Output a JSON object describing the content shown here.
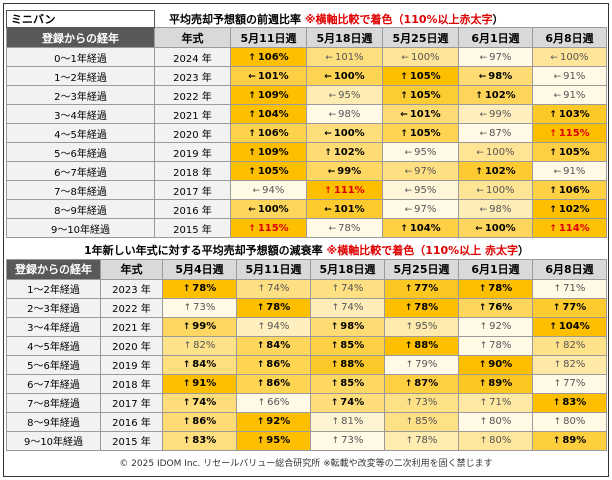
{
  "colors": {
    "header_dark": "#595959",
    "header_light": "#d9d9d9",
    "label_bg": "#f2f2f2",
    "highlight_red": "#e00000",
    "scale_low": "#ffffff",
    "scale_high": "#fdbf00"
  },
  "chart_data": [
    {
      "type": "heatmap",
      "brand": "ミニバン",
      "title_main": "平均売却予想額の前週比率",
      "title_note": "※横軸比較で着色（110%以上",
      "title_note_red": "赤太字",
      "title_note_end": "）",
      "row_header": "登録からの経年",
      "year_header": "年式",
      "columns": [
        "5月11日週",
        "5月18日週",
        "5月25日週",
        "6月1日週",
        "6月8日週"
      ],
      "rows": [
        {
          "label": "0～1年経過",
          "year": "2024 年",
          "arrows": [
            "↑",
            "←",
            "←",
            "←",
            "←"
          ],
          "values": [
            106,
            101,
            100,
            97,
            100
          ]
        },
        {
          "label": "1～2年経過",
          "year": "2023 年",
          "arrows": [
            "←",
            "←",
            "↑",
            "←",
            "←"
          ],
          "values": [
            101,
            100,
            105,
            98,
            91
          ]
        },
        {
          "label": "2～3年経過",
          "year": "2022 年",
          "arrows": [
            "↑",
            "←",
            "↑",
            "↑",
            "←"
          ],
          "values": [
            109,
            95,
            105,
            102,
            91
          ]
        },
        {
          "label": "3～4年経過",
          "year": "2021 年",
          "arrows": [
            "↑",
            "←",
            "←",
            "←",
            "↑"
          ],
          "values": [
            104,
            98,
            101,
            99,
            103
          ]
        },
        {
          "label": "4～5年経過",
          "year": "2020 年",
          "arrows": [
            "↑",
            "←",
            "↑",
            "←",
            "↑"
          ],
          "values": [
            106,
            100,
            105,
            87,
            115
          ]
        },
        {
          "label": "5～6年経過",
          "year": "2019 年",
          "arrows": [
            "↑",
            "↑",
            "←",
            "←",
            "↑"
          ],
          "values": [
            109,
            102,
            95,
            100,
            105
          ]
        },
        {
          "label": "6～7年経過",
          "year": "2018 年",
          "arrows": [
            "↑",
            "←",
            "←",
            "↑",
            "←"
          ],
          "values": [
            105,
            99,
            97,
            102,
            91
          ]
        },
        {
          "label": "7～8年経過",
          "year": "2017 年",
          "arrows": [
            "←",
            "↑",
            "←",
            "←",
            "↑"
          ],
          "values": [
            94,
            111,
            95,
            100,
            106
          ]
        },
        {
          "label": "8～9年経過",
          "year": "2016 年",
          "arrows": [
            "←",
            "←",
            "←",
            "←",
            "↑"
          ],
          "values": [
            100,
            101,
            97,
            98,
            102
          ]
        },
        {
          "label": "9～10年経過",
          "year": "2015 年",
          "arrows": [
            "↑",
            "←",
            "↑",
            "←",
            "↑"
          ],
          "values": [
            115,
            78,
            104,
            100,
            114
          ]
        }
      ]
    },
    {
      "type": "heatmap",
      "title_main": "1年新しい年式に対する平均売却予想額の減衰率",
      "title_note": "※横軸比較で着色（110%以上",
      "title_note_red": "赤太字",
      "title_note_end": "）",
      "row_header": "登録からの経年",
      "year_header": "年式",
      "columns": [
        "5月4日週",
        "5月11日週",
        "5月18日週",
        "5月25日週",
        "6月1日週",
        "6月8日週"
      ],
      "rows": [
        {
          "label": "1～2年経過",
          "year": "2023 年",
          "arrows": [
            "↑",
            "↑",
            "↑",
            "↑",
            "↑",
            "↑"
          ],
          "values": [
            78,
            74,
            74,
            77,
            78,
            71
          ]
        },
        {
          "label": "2～3年経過",
          "year": "2022 年",
          "arrows": [
            "↑",
            "↑",
            "↑",
            "↑",
            "↑",
            "↑"
          ],
          "values": [
            73,
            78,
            74,
            78,
            76,
            77
          ]
        },
        {
          "label": "3～4年経過",
          "year": "2021 年",
          "arrows": [
            "↑",
            "↑",
            "↑",
            "↑",
            "↑",
            "↑"
          ],
          "values": [
            99,
            94,
            98,
            95,
            92,
            104
          ]
        },
        {
          "label": "4～5年経過",
          "year": "2020 年",
          "arrows": [
            "↑",
            "↑",
            "↑",
            "↑",
            "↑",
            "↑"
          ],
          "values": [
            82,
            84,
            85,
            88,
            78,
            82
          ]
        },
        {
          "label": "5～6年経過",
          "year": "2019 年",
          "arrows": [
            "↑",
            "↑",
            "↑",
            "↑",
            "↑",
            "↑"
          ],
          "values": [
            84,
            86,
            88,
            79,
            90,
            82
          ]
        },
        {
          "label": "6～7年経過",
          "year": "2018 年",
          "arrows": [
            "↑",
            "↑",
            "↑",
            "↑",
            "↑",
            "↑"
          ],
          "values": [
            91,
            86,
            85,
            87,
            89,
            77
          ]
        },
        {
          "label": "7～8年経過",
          "year": "2017 年",
          "arrows": [
            "↑",
            "↑",
            "↑",
            "↑",
            "↑",
            "↑"
          ],
          "values": [
            74,
            66,
            74,
            73,
            71,
            83
          ]
        },
        {
          "label": "8～9年経過",
          "year": "2016 年",
          "arrows": [
            "↑",
            "↑",
            "↑",
            "↑",
            "↑",
            "↑"
          ],
          "values": [
            86,
            92,
            81,
            85,
            80,
            80
          ]
        },
        {
          "label": "9～10年経過",
          "year": "2015 年",
          "arrows": [
            "↑",
            "↑",
            "↑",
            "↑",
            "↑",
            "↑"
          ],
          "values": [
            83,
            95,
            73,
            78,
            80,
            89
          ]
        }
      ]
    }
  ],
  "footer": "© 2025 IDOM Inc. リセールバリュー総合研究所 ※転載や改変等の二次利用を固く禁じます"
}
